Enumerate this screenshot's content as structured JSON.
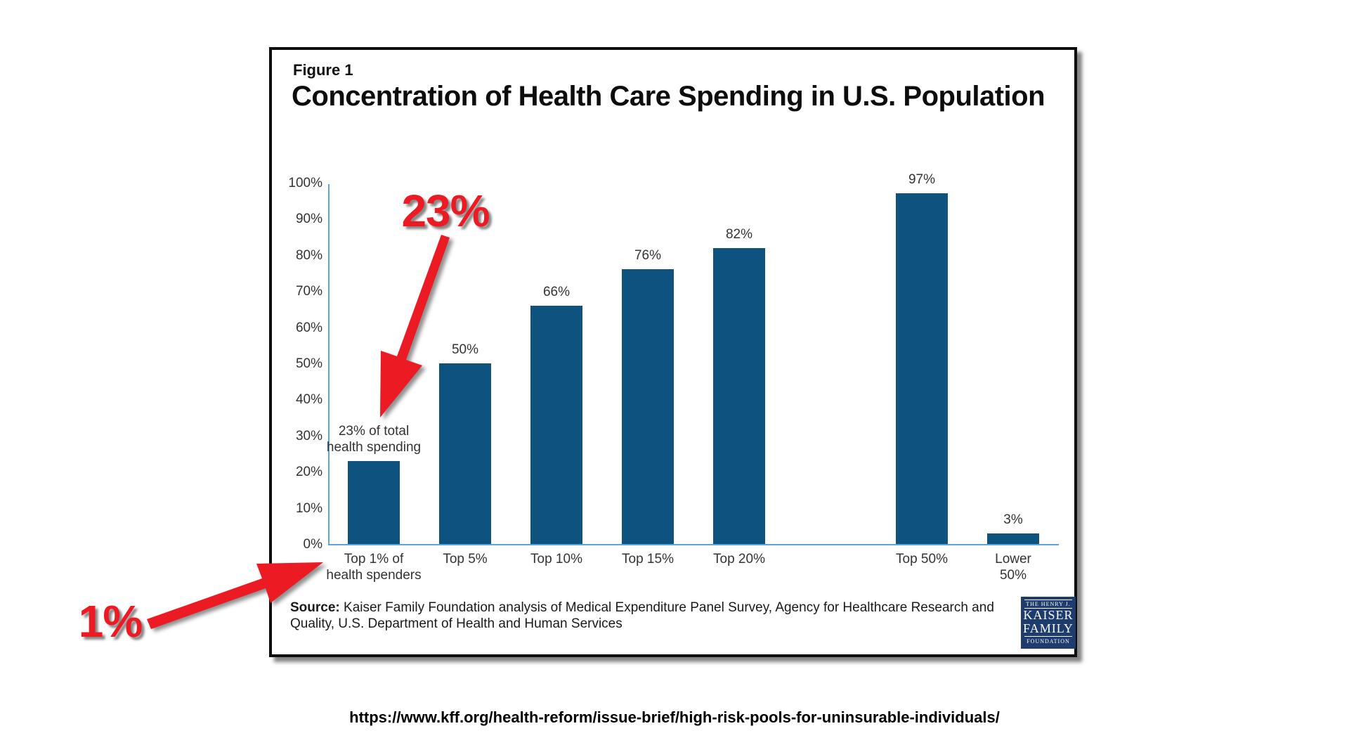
{
  "figure": {
    "label": "Figure 1",
    "title": "Concentration of Health Care Spending in U.S. Population",
    "source_label": "Source:",
    "source_text": "Kaiser Family Foundation analysis of Medical Expenditure Panel Survey, Agency for Healthcare Research and Quality, U.S. Department of Health and Human Services"
  },
  "chart_data": {
    "type": "bar",
    "title": "Concentration of Health Care Spending in U.S. Population",
    "categories": [
      "Top 1% of health spenders",
      "Top 5%",
      "Top 10%",
      "Top 15%",
      "Top 20%",
      "Top 50%",
      "Lower 50%"
    ],
    "values": [
      23,
      50,
      66,
      76,
      82,
      97,
      3
    ],
    "bar_value_labels": [
      "23% of total\nhealth spending",
      "50%",
      "66%",
      "76%",
      "82%",
      "97%",
      "3%"
    ],
    "x_tick_labels": [
      "Top 1% of\nhealth spenders",
      "Top 5%",
      "Top 10%",
      "Top 15%",
      "Top 20%",
      "Top 50%",
      "Lower 50%"
    ],
    "slot_indices": [
      0,
      1,
      2,
      3,
      4,
      6,
      7
    ],
    "y_ticks": [
      "0%",
      "10%",
      "20%",
      "30%",
      "40%",
      "50%",
      "60%",
      "70%",
      "80%",
      "90%",
      "100%"
    ],
    "ylim": [
      0,
      100
    ],
    "grid": false,
    "legend": false,
    "bar_color": "#0e5380",
    "axis_color": "#5ba7dc",
    "label_color": "#333333"
  },
  "annotations": {
    "big_23": "23%",
    "big_1": "1%",
    "color": "#ec1b23",
    "arrows": [
      {
        "name": "arrow-23-to-bar",
        "from": [
          634,
          336
        ],
        "to": [
          541,
          594
        ],
        "shaft": 13,
        "head_w": 62,
        "head_l": 90
      },
      {
        "name": "arrow-1-to-label",
        "from": [
          212,
          888
        ],
        "to": [
          460,
          800
        ],
        "shaft": 15,
        "head_w": 60,
        "head_l": 90
      }
    ]
  },
  "logo": {
    "line1": "THE HENRY J.",
    "line2": "KAISER",
    "line3": "FAMILY",
    "line4": "FOUNDATION",
    "bg_color": "#1e3c6e"
  },
  "footer": {
    "url": "https://www.kff.org/health-reform/issue-brief/high-risk-pools-for-uninsurable-individuals/"
  }
}
